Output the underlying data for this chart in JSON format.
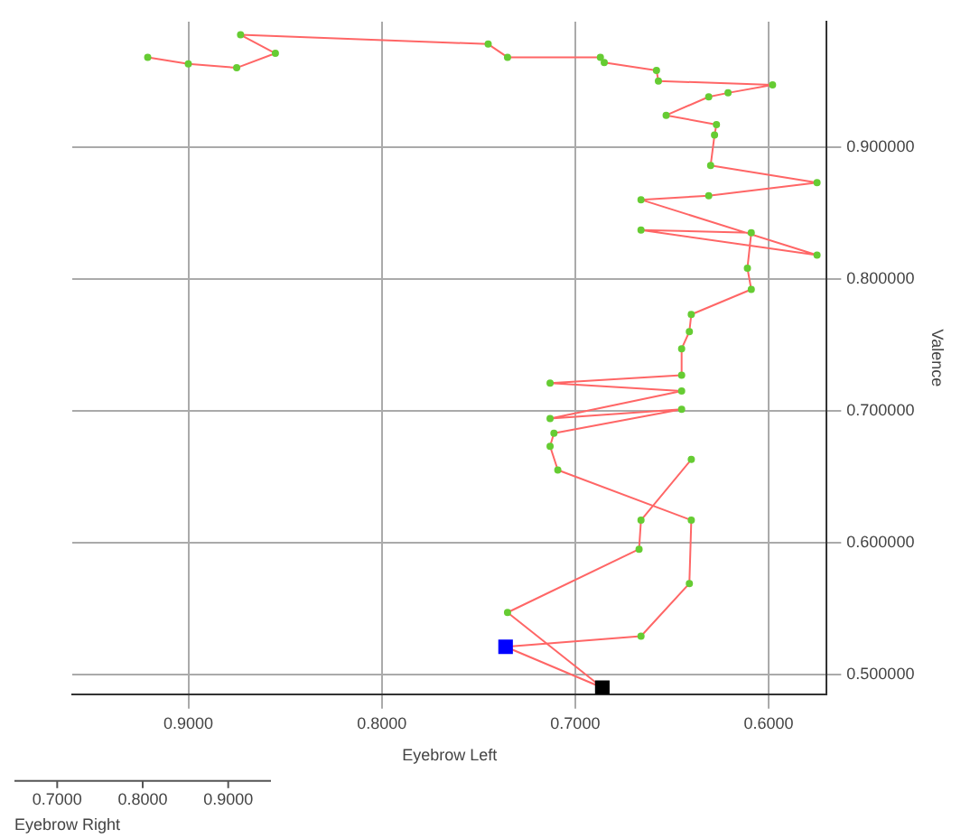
{
  "chart_data": {
    "type": "line",
    "xlabel": "Eyebrow Left",
    "ylabel": "Valence",
    "x2label": "Eyebrow Right",
    "xlim": [
      0.96,
      0.57
    ],
    "xticks": [
      {
        "value": 0.9,
        "label": "0.9000"
      },
      {
        "value": 0.8,
        "label": "0.8000"
      },
      {
        "value": 0.7,
        "label": "0.7000"
      },
      {
        "value": 0.6,
        "label": "0.6000"
      }
    ],
    "ylim": [
      0.485,
      0.995
    ],
    "yticks": [
      {
        "value": 0.5,
        "label": "0.500000"
      },
      {
        "value": 0.6,
        "label": "0.600000"
      },
      {
        "value": 0.7,
        "label": "0.700000"
      },
      {
        "value": 0.8,
        "label": "0.800000"
      },
      {
        "value": 0.9,
        "label": "0.900000"
      }
    ],
    "x2lim": [
      0.65,
      0.95
    ],
    "x2ticks": [
      {
        "value": 0.7,
        "label": "0.7000"
      },
      {
        "value": 0.8,
        "label": "0.8000"
      },
      {
        "value": 0.9,
        "label": "0.9000"
      }
    ],
    "grid": true,
    "legend": false,
    "marker": "circle",
    "series": [
      {
        "color": "#ff6666",
        "x": [
          0.736,
          0.666,
          0.641,
          0.64,
          0.709,
          0.713,
          0.711,
          0.645,
          0.713,
          0.645,
          0.713,
          0.645,
          0.645,
          0.641,
          0.64,
          0.609,
          0.611,
          0.609,
          0.666,
          0.575,
          0.666,
          0.631,
          0.575,
          0.63,
          0.628,
          0.627,
          0.653,
          0.631,
          0.621,
          0.598,
          0.657,
          0.658,
          0.685,
          0.687,
          0.735,
          0.745,
          0.873,
          0.855,
          0.875,
          0.9,
          0.921
        ],
        "values": [
          0.521,
          0.529,
          0.569,
          0.617,
          0.655,
          0.673,
          0.683,
          0.701,
          0.694,
          0.715,
          0.721,
          0.727,
          0.747,
          0.76,
          0.773,
          0.792,
          0.808,
          0.835,
          0.837,
          0.818,
          0.86,
          0.863,
          0.873,
          0.886,
          0.909,
          0.917,
          0.924,
          0.938,
          0.941,
          0.947,
          0.95,
          0.958,
          0.964,
          0.968,
          0.968,
          0.978,
          0.985,
          0.971,
          0.96,
          0.963,
          0.968
        ]
      },
      {
        "color": "#ff6666",
        "x": [
          0.736,
          0.686,
          0.735,
          0.667,
          0.666,
          0.64
        ],
        "values": [
          0.521,
          0.49,
          0.547,
          0.595,
          0.617,
          0.663
        ]
      },
      {
        "type": "scatter",
        "marker": "square",
        "x": [
          0.736,
          0.686
        ],
        "values": [
          0.521,
          0.49
        ],
        "colors": [
          "#0000ff",
          "#000000"
        ]
      }
    ]
  }
}
